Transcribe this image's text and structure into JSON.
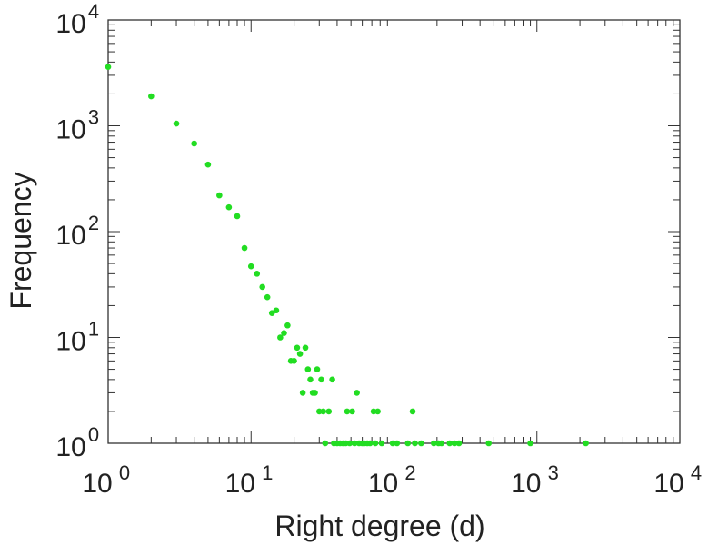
{
  "chart_data": {
    "type": "scatter",
    "title": "",
    "xlabel": "Right degree (d)",
    "ylabel": "Frequency",
    "xscale": "log",
    "yscale": "log",
    "xlim": [
      1,
      10000
    ],
    "ylim": [
      1,
      10000
    ],
    "grid": false,
    "x_tick_labels": [
      {
        "value": 1,
        "base": "10",
        "exp": "0"
      },
      {
        "value": 10,
        "base": "10",
        "exp": "1"
      },
      {
        "value": 100,
        "base": "10",
        "exp": "2"
      },
      {
        "value": 1000,
        "base": "10",
        "exp": "3"
      },
      {
        "value": 10000,
        "base": "10",
        "exp": "4"
      }
    ],
    "y_tick_labels": [
      {
        "value": 1,
        "base": "10",
        "exp": "0"
      },
      {
        "value": 10,
        "base": "10",
        "exp": "1"
      },
      {
        "value": 100,
        "base": "10",
        "exp": "2"
      },
      {
        "value": 1000,
        "base": "10",
        "exp": "3"
      },
      {
        "value": 10000,
        "base": "10",
        "exp": "4"
      }
    ],
    "series": [
      {
        "name": "frequency",
        "color": "#22dd22",
        "points": [
          [
            1,
            3600
          ],
          [
            2,
            1900
          ],
          [
            3,
            1050
          ],
          [
            4,
            680
          ],
          [
            5,
            430
          ],
          [
            6,
            220
          ],
          [
            7,
            170
          ],
          [
            8,
            140
          ],
          [
            9,
            70
          ],
          [
            10,
            47
          ],
          [
            11,
            40
          ],
          [
            12,
            30
          ],
          [
            13,
            24
          ],
          [
            14,
            17
          ],
          [
            15,
            18
          ],
          [
            16,
            10
          ],
          [
            17,
            11
          ],
          [
            18,
            13
          ],
          [
            19,
            6
          ],
          [
            20,
            6
          ],
          [
            21,
            8
          ],
          [
            22,
            7
          ],
          [
            23,
            3
          ],
          [
            24,
            8
          ],
          [
            25,
            5
          ],
          [
            26,
            4
          ],
          [
            27,
            3
          ],
          [
            28,
            3
          ],
          [
            29,
            5
          ],
          [
            30,
            2
          ],
          [
            31,
            4
          ],
          [
            32,
            2
          ],
          [
            33,
            1
          ],
          [
            35,
            2
          ],
          [
            37,
            4
          ],
          [
            38,
            1
          ],
          [
            40,
            1
          ],
          [
            42,
            1
          ],
          [
            44,
            1
          ],
          [
            46,
            1
          ],
          [
            47,
            2
          ],
          [
            49,
            1
          ],
          [
            51,
            2
          ],
          [
            53,
            1
          ],
          [
            55,
            3
          ],
          [
            57,
            1
          ],
          [
            60,
            1
          ],
          [
            62,
            1
          ],
          [
            65,
            1
          ],
          [
            68,
            1
          ],
          [
            72,
            2
          ],
          [
            74,
            1
          ],
          [
            77,
            2
          ],
          [
            82,
            1
          ],
          [
            98,
            1
          ],
          [
            105,
            1
          ],
          [
            125,
            1
          ],
          [
            135,
            2
          ],
          [
            140,
            1
          ],
          [
            155,
            1
          ],
          [
            190,
            1
          ],
          [
            205,
            1
          ],
          [
            215,
            1
          ],
          [
            245,
            1
          ],
          [
            265,
            1
          ],
          [
            285,
            1
          ],
          [
            460,
            1
          ],
          [
            900,
            1
          ],
          [
            2200,
            1
          ]
        ]
      }
    ]
  }
}
